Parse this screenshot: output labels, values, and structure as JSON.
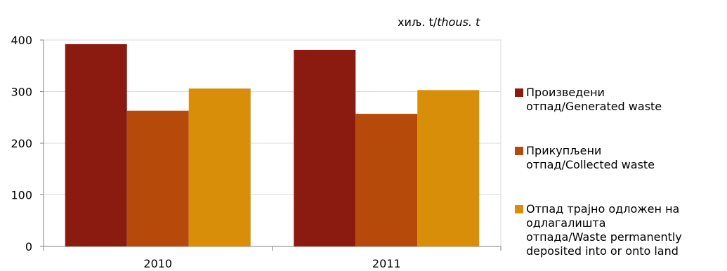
{
  "unit_label": {
    "main": "хиљ. t/",
    "italic": "thous. t"
  },
  "chart_data": {
    "type": "bar",
    "categories": [
      "2010",
      "2011"
    ],
    "series": [
      {
        "name": "Произведени отпад/Generated waste",
        "values": [
          392,
          381
        ],
        "color": "#8b1a10"
      },
      {
        "name": "Прикупљени отпад/Collected waste",
        "values": [
          263,
          257
        ],
        "color": "#b54a0a"
      },
      {
        "name": "Отпад трајно одложен на одлагалишта отпада/Waste permanently deposited into or onto land",
        "values": [
          306,
          303
        ],
        "color": "#d98e0a"
      }
    ],
    "yticks": [
      0,
      100,
      200,
      300,
      400
    ],
    "ylim": [
      0,
      400
    ],
    "grid": true,
    "legend_position": "right"
  },
  "legend": [
    {
      "lines": [
        "Произведени",
        "отпад/Generated waste"
      ]
    },
    {
      "lines": [
        "Прикупљени",
        "отпад/Collected waste"
      ]
    },
    {
      "lines": [
        "Отпад трајно одложен на",
        "одлагалишта",
        "отпада/Waste permanently",
        "deposited into or onto land"
      ]
    }
  ]
}
